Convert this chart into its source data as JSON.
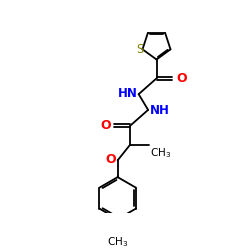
{
  "background": "#ffffff",
  "figsize": [
    2.5,
    2.5
  ],
  "dpi": 100,
  "bond_color": "#000000",
  "S_color": "#808000",
  "O_color": "#ff0000",
  "N_color": "#0000ff",
  "lw": 1.3,
  "xlim": [
    0,
    10
  ],
  "ylim": [
    0,
    10
  ]
}
